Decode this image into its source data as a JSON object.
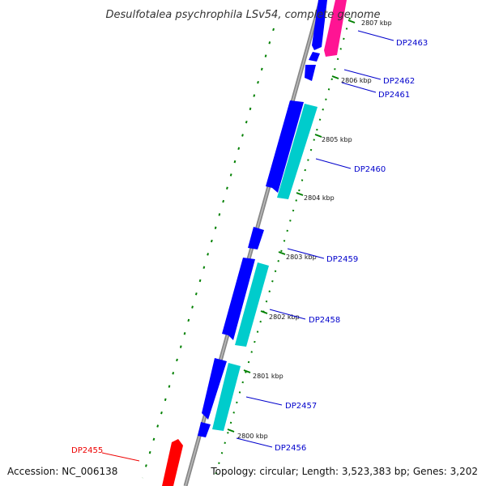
{
  "title": "Desulfotalea psychrophila LSv54, complete genome",
  "accession": "Accession: NC_006138",
  "topology": "Topology: circular; Length: 3,523,383 bp; Genes: 3,202",
  "colors": {
    "backbone": "#888888",
    "gene_forward": "#0000ff",
    "gene_reverse": "#00cccc",
    "gene_pink": "#ff1493",
    "gene_red": "#ff0000",
    "label_blue": "#0000cc",
    "label_red": "#ee0000",
    "tick": "#008000"
  },
  "ticks": [
    {
      "label": "2807 kbp"
    },
    {
      "label": "2806 kbp"
    },
    {
      "label": "2805 kbp"
    },
    {
      "label": "2804 kbp"
    },
    {
      "label": "2803 kbp"
    },
    {
      "label": "2802 kbp"
    },
    {
      "label": "2801 kbp"
    },
    {
      "label": "2800 kbp"
    }
  ],
  "gene_labels": [
    {
      "name": "DP2463",
      "color": "blue"
    },
    {
      "name": "DP2462",
      "color": "blue"
    },
    {
      "name": "DP2461",
      "color": "blue"
    },
    {
      "name": "DP2460",
      "color": "blue"
    },
    {
      "name": "DP2459",
      "color": "blue"
    },
    {
      "name": "DP2458",
      "color": "blue"
    },
    {
      "name": "DP2457",
      "color": "blue"
    },
    {
      "name": "DP2456",
      "color": "blue"
    },
    {
      "name": "DP2455",
      "color": "red"
    }
  ]
}
